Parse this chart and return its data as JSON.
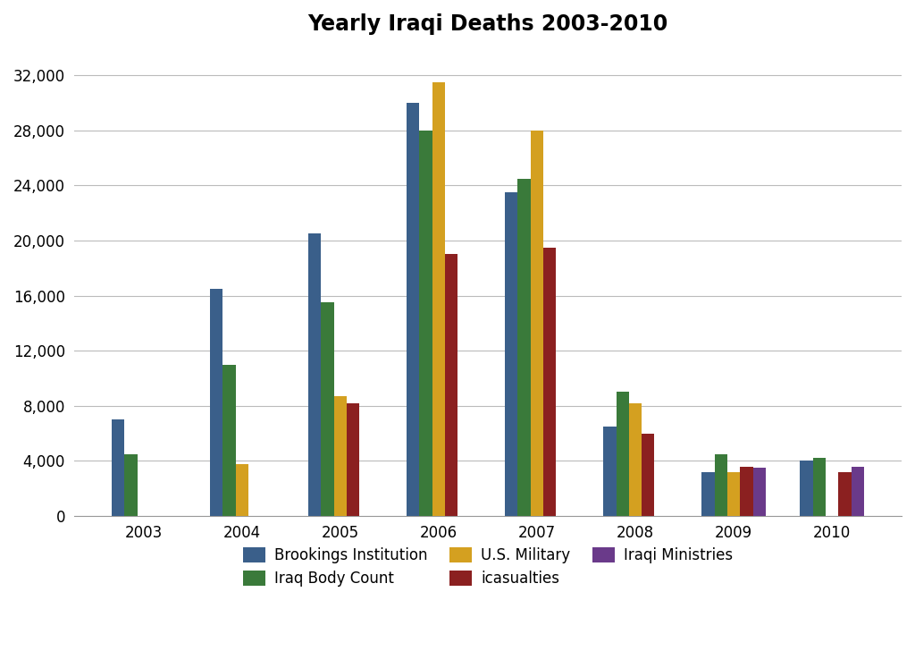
{
  "title": "Yearly Iraqi Deaths 2003-2010",
  "years": [
    2003,
    2004,
    2005,
    2006,
    2007,
    2008,
    2009,
    2010
  ],
  "series": {
    "Brookings Institution": [
      7000,
      16500,
      20500,
      30000,
      23500,
      6500,
      3200,
      4000
    ],
    "Iraq Body Count": [
      4500,
      11000,
      15500,
      28000,
      24500,
      9000,
      4500,
      4200
    ],
    "U.S. Military": [
      0,
      3800,
      8700,
      31500,
      28000,
      8200,
      3200,
      0
    ],
    "icasualties": [
      0,
      0,
      8200,
      19000,
      19500,
      6000,
      3600,
      3200
    ],
    "Iraqi Ministries": [
      0,
      0,
      0,
      0,
      0,
      0,
      3500,
      3600
    ]
  },
  "colors": {
    "Brookings Institution": "#3a5f8a",
    "Iraq Body Count": "#3a7a3a",
    "U.S. Military": "#d4a020",
    "icasualties": "#8b2020",
    "Iraqi Ministries": "#6a3a8a"
  },
  "ylim": [
    0,
    34000
  ],
  "yticks": [
    0,
    4000,
    8000,
    12000,
    16000,
    20000,
    24000,
    28000,
    32000
  ],
  "background_color": "#ffffff",
  "grid_color": "#bbbbbb"
}
